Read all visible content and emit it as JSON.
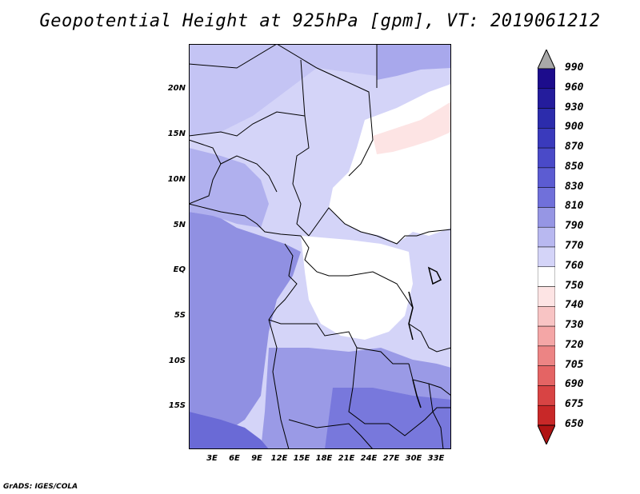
{
  "title": "Geopotential Height at 925hPa [gpm], VT: 2019061212",
  "footer": "GrADS: IGES/COLA",
  "map": {
    "lat_labels": [
      "20N",
      "15N",
      "10N",
      "5N",
      "EQ",
      "5S",
      "10S",
      "15S"
    ],
    "lon_labels": [
      "3E",
      "6E",
      "9E",
      "12E",
      "15E",
      "18E",
      "21E",
      "24E",
      "27E",
      "30E",
      "33E"
    ],
    "region": "Central and West Africa"
  },
  "colorbar": {
    "levels": [
      "990",
      "960",
      "930",
      "900",
      "870",
      "850",
      "830",
      "810",
      "790",
      "770",
      "760",
      "750",
      "740",
      "730",
      "720",
      "705",
      "690",
      "675",
      "650"
    ],
    "colors": {
      "gt990": "#a8a8a8",
      "c990": "#1c0c8c",
      "c960": "#241c9c",
      "c930": "#2c2cac",
      "c900": "#3a3abc",
      "c870": "#4a4ac8",
      "c850": "#5c5cd2",
      "c830": "#7070da",
      "c810": "#9696e4",
      "c790": "#b8b8f0",
      "c770": "#d4d4f8",
      "c760": "#ffffff",
      "c750": "#fde4e4",
      "c740": "#f8c4c4",
      "c730": "#f4a6a6",
      "c720": "#ec8484",
      "c705": "#e46464",
      "c690": "#d84444",
      "c675": "#c82828",
      "c650": "#b01414"
    }
  }
}
